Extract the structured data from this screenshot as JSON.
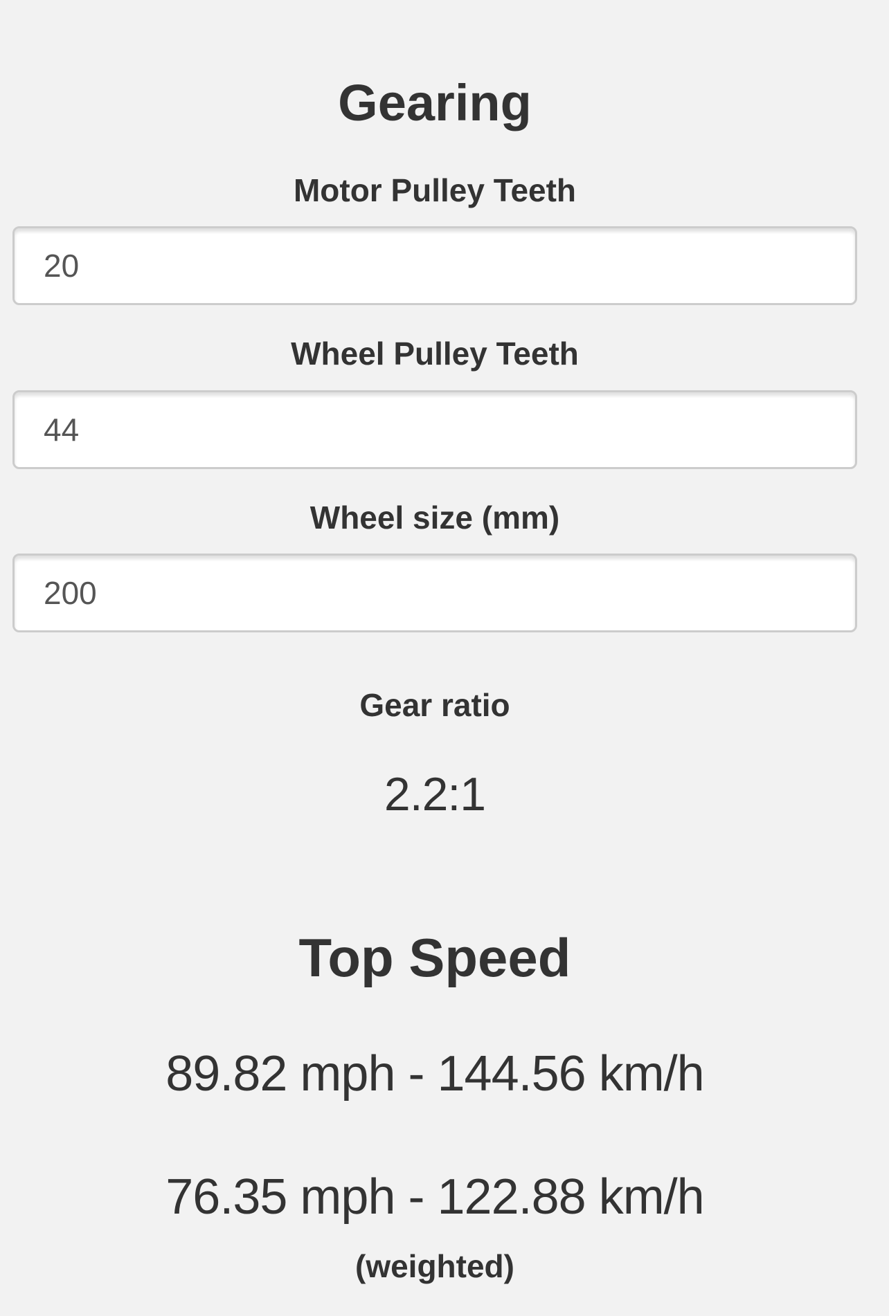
{
  "gearing": {
    "title": "Gearing",
    "motor_pulley_label": "Motor Pulley Teeth",
    "motor_pulley_value": "20",
    "wheel_pulley_label": "Wheel Pulley Teeth",
    "wheel_pulley_value": "44",
    "wheel_size_label": "Wheel size (mm)",
    "wheel_size_value": "200",
    "gear_ratio_label": "Gear ratio",
    "gear_ratio_value": "2.2:1"
  },
  "top_speed": {
    "title": "Top Speed",
    "max": "89.82 mph - 144.56 km/h",
    "weighted": "76.35 mph - 122.88 km/h",
    "weighted_label": "(weighted)"
  }
}
